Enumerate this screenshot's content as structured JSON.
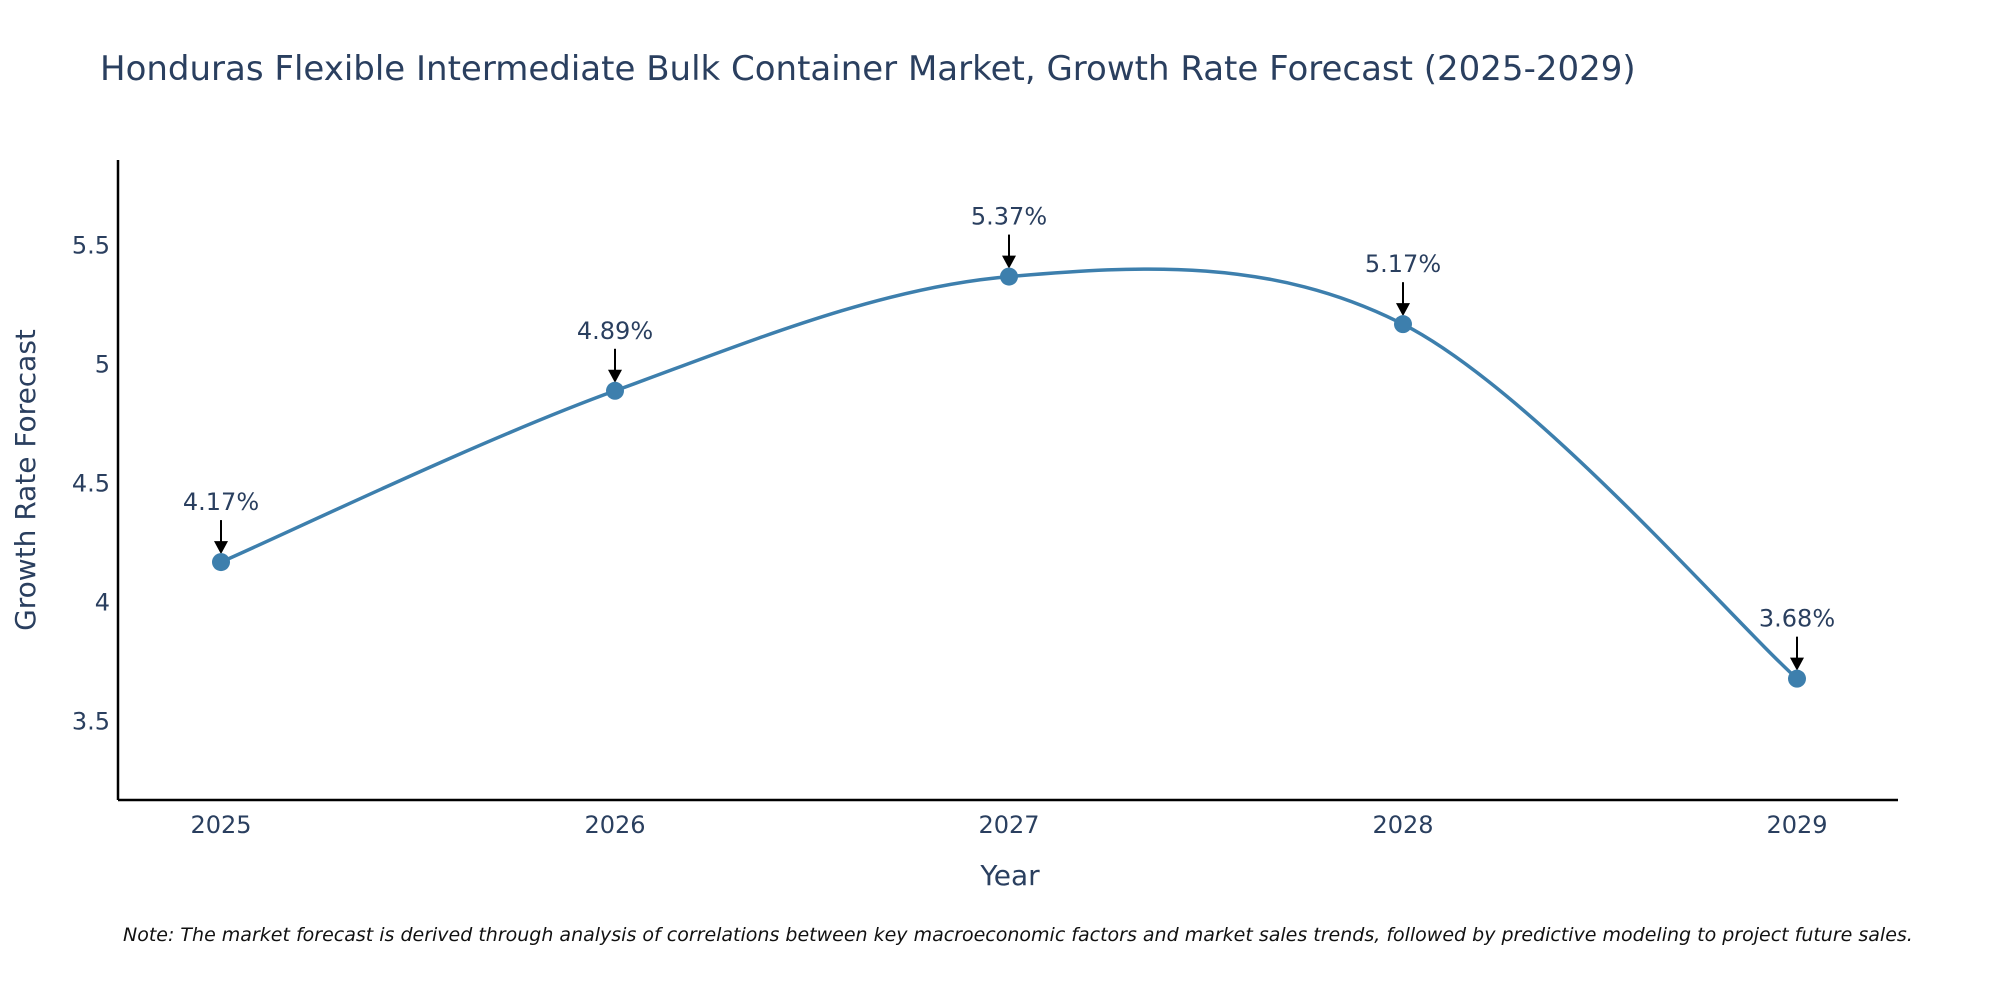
{
  "colors": {
    "series": "#3d7fad",
    "axis": "#000000",
    "text": "#2a3f5f",
    "arrow": "#000000"
  },
  "note": "Note: The market forecast is derived through analysis of correlations between key macroeconomic factors and market sales trends, followed by predictive modeling to project future sales.",
  "chart_data": {
    "type": "line",
    "title": "Honduras Flexible Intermediate Bulk Container Market, Growth Rate Forecast (2025-2029)",
    "xlabel": "Year",
    "ylabel": "Growth Rate Forecast",
    "categories": [
      "2025",
      "2026",
      "2027",
      "2028",
      "2029"
    ],
    "series": [
      {
        "name": "Growth Rate Forecast",
        "values": [
          4.17,
          4.89,
          5.37,
          5.17,
          3.68
        ]
      }
    ],
    "data_labels": [
      "4.17%",
      "4.89%",
      "5.37%",
      "5.17%",
      "3.68%"
    ],
    "ylim": [
      3.17,
      5.86
    ],
    "yticks": [
      3.5,
      4,
      4.5,
      5,
      5.5
    ],
    "ytick_labels": [
      "3.5",
      "4",
      "4.5",
      "5",
      "5.5"
    ],
    "line_shape": "spline",
    "grid": false,
    "legend": "none"
  }
}
